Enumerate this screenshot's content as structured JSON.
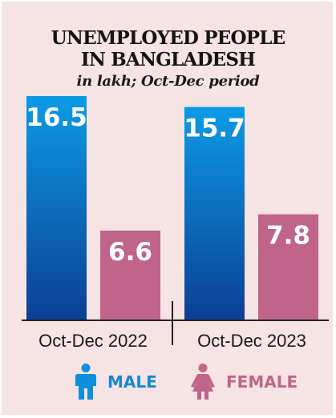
{
  "title_line1": "UNEMPLOYED PEOPLE",
  "title_line2": "IN BANGLADESH",
  "subtitle": "in lakh; Oct-Dec period",
  "colors": {
    "male": "#1565c0",
    "female": "#c0648a",
    "axis": "#222222",
    "background": "#f6e3e3"
  },
  "legend": [
    {
      "label": "MALE",
      "icon": "male-person-icon"
    },
    {
      "label": "FEMALE",
      "icon": "female-person-icon"
    }
  ],
  "chart_data": {
    "type": "bar",
    "title": "UNEMPLOYED PEOPLE IN BANGLADESH",
    "subtitle": "in lakh; Oct-Dec period",
    "categories": [
      "Oct-Dec 2022",
      "Oct-Dec 2023"
    ],
    "series": [
      {
        "name": "MALE",
        "values": [
          16.5,
          15.7
        ]
      },
      {
        "name": "FEMALE",
        "values": [
          6.6,
          7.8
        ]
      }
    ],
    "data_labels": [
      [
        "16.5",
        "6.6"
      ],
      [
        "15.7",
        "7.8"
      ]
    ],
    "ylim": [
      0,
      16.5
    ],
    "grid": false,
    "legend_position": "bottom"
  }
}
